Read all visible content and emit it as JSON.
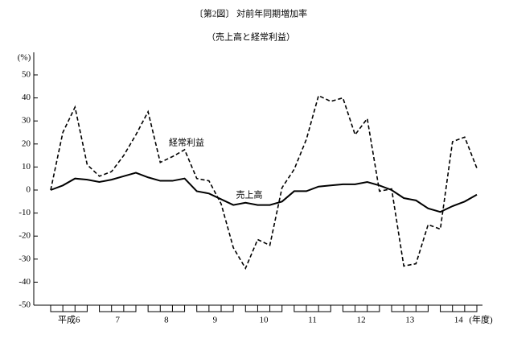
{
  "chart_data": {
    "type": "line",
    "title": "〔第2図〕 対前年同期増加率",
    "subtitle": "（売上高と経常利益）",
    "y_unit_label": "(%)",
    "x_unit_label": "(年度)",
    "groups": [
      "平成6",
      "7",
      "8",
      "9",
      "10",
      "11",
      "12",
      "13",
      "14"
    ],
    "categories": [
      null,
      null,
      null,
      null,
      null,
      null,
      null,
      null,
      null,
      null,
      null,
      null,
      null,
      null,
      null,
      null,
      null,
      null,
      null,
      null,
      null,
      null,
      null,
      null,
      null,
      null,
      null,
      null,
      null,
      null,
      null,
      null,
      null,
      null,
      null,
      null
    ],
    "series": [
      {
        "name": "売上高",
        "color": "#000000",
        "dash": false,
        "values": [
          0,
          2,
          5,
          4.5,
          3.5,
          4.5,
          6,
          7.5,
          5.5,
          4,
          4,
          5,
          -0.5,
          -1.5,
          -4,
          -6.5,
          -5.5,
          -6.5,
          -6.5,
          -5,
          -0.5,
          -0.5,
          1.5,
          2,
          2.5,
          2.5,
          3.5,
          2,
          0,
          -3.5,
          -4.5,
          -8,
          -9.5,
          -7,
          -5,
          -2
        ]
      },
      {
        "name": "経常利益",
        "color": "#000000",
        "dash": true,
        "values": [
          0,
          25,
          36,
          11,
          6,
          8,
          15,
          24,
          34,
          12,
          14.5,
          17.5,
          5,
          4,
          -6,
          -25,
          -34,
          -21.5,
          -24,
          1,
          9,
          22,
          41,
          38.5,
          40,
          24,
          31,
          -0.5,
          0.5,
          -33,
          -32,
          -15,
          -17,
          21,
          23,
          9.5
        ]
      }
    ],
    "ylim": [
      -50,
      50
    ],
    "yticks": [
      -50,
      -40,
      -30,
      -20,
      -10,
      0,
      10,
      20,
      30,
      40,
      50
    ]
  }
}
